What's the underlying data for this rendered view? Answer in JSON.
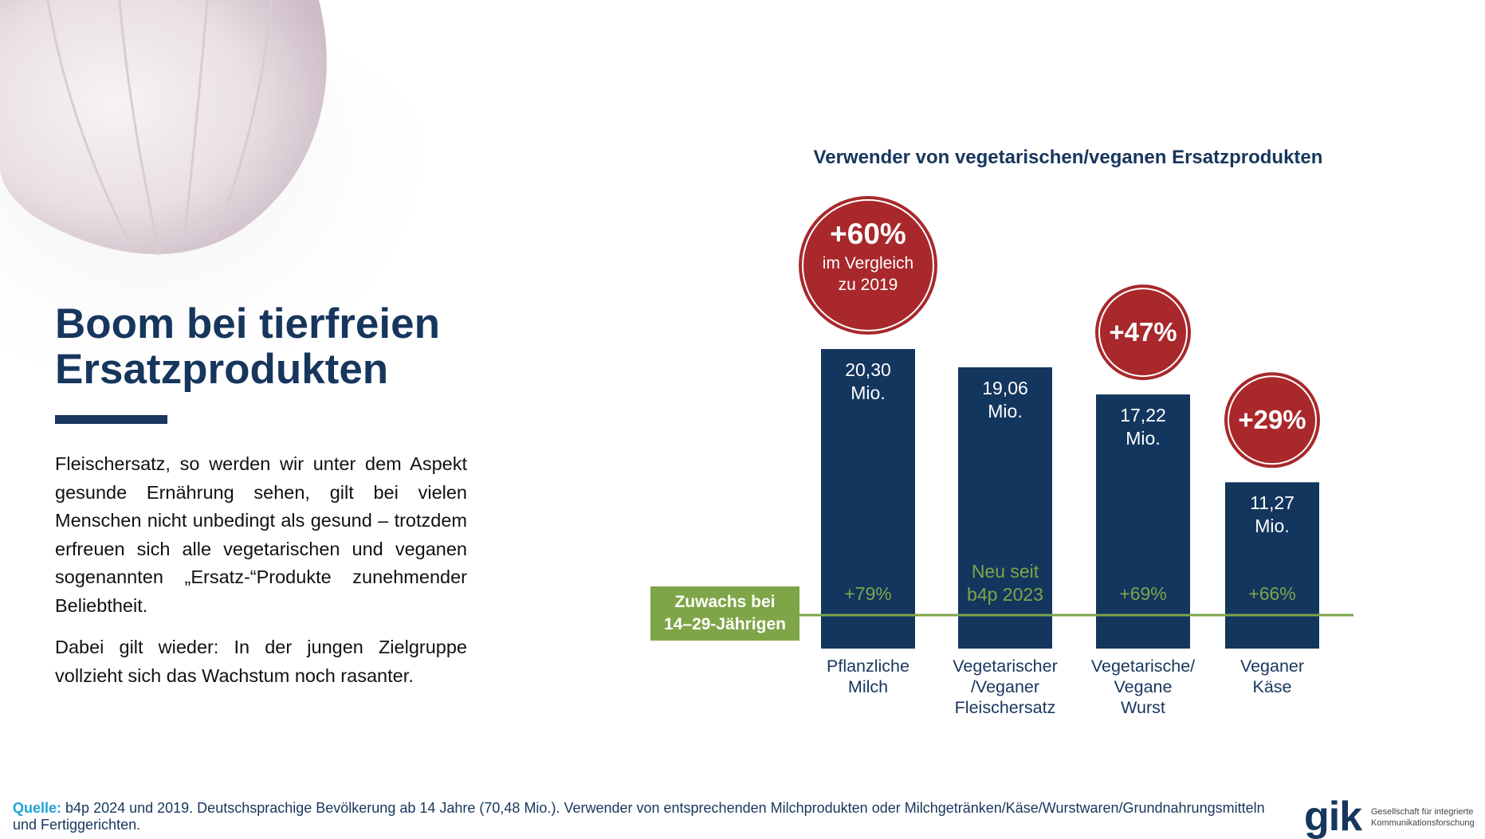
{
  "headline": "Boom bei tierfreien\nErsatzprodukten",
  "paragraphs": [
    "Fleischersatz, so werden wir unter dem Aspekt gesunde Ernährung sehen, gilt bei vielen Menschen nicht unbedingt als gesund – trotzdem erfreuen sich alle vegetarischen und veganen sogenannten „Ersatz-“Produkte zunehmender Beliebtheit.",
    "Dabei gilt wieder: In der jungen Zielgruppe vollzieht sich das Wachstum noch rasanter."
  ],
  "source_label": "Quelle:",
  "source": "b4p 2024 und 2019. Deutschsprachige Bevölkerung ab 14 Jahre (70,48 Mio.). Verwender von entsprechenden Milchprodukten oder Milchgetränken/Käse/Wurstwaren/Grundnahrungsmitteln und Fertiggerichten.",
  "logo": "gik",
  "logo_tagline": "Gesellschaft für integrierte\nKommunikationsforschung",
  "chart_data": {
    "type": "bar",
    "title": "Verwender von vegetarischen/veganen Ersatzprodukten",
    "categories": [
      "Pflanzliche\nMilch",
      "Vegetarischer\n/Veganer\nFleischersatz",
      "Vegetarische/\nVegane\nWurst",
      "Veganer\nKäse"
    ],
    "values": [
      20.3,
      19.06,
      17.22,
      11.27
    ],
    "value_labels": [
      "20,30\nMio.",
      "19,06\nMio.",
      "17,22\nMio.",
      "11,27\nMio."
    ],
    "color": "#13365e",
    "badges": [
      {
        "label": "+60%",
        "note": "im Vergleich\nzu 2019"
      },
      null,
      {
        "label": "+47%"
      },
      {
        "label": "+29%"
      }
    ],
    "badge_color": "#a8282b",
    "baseline_label": "Zuwachs bei\n14–29-Jährigen",
    "youth_growth": [
      "+79%",
      "Neu seit\nb4p 2023",
      "+69%",
      "+66%"
    ],
    "youth_color": "#7ea548"
  }
}
